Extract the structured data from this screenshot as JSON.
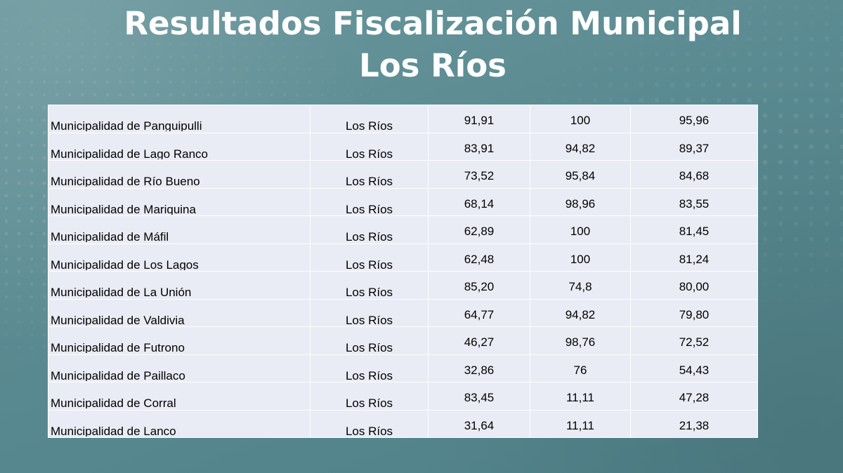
{
  "slide": {
    "title_line1": "Resultados Fiscalización Municipal",
    "title_line2": "Los Ríos"
  },
  "table": {
    "rows": [
      {
        "municipality": "Municipalidad de Panguipulli",
        "region": "Los Ríos",
        "value1": "91,91",
        "value2": "100",
        "value3": "95,96"
      },
      {
        "municipality": "Municipalidad de Lago Ranco",
        "region": "Los Ríos",
        "value1": "83,91",
        "value2": "94,82",
        "value3": "89,37"
      },
      {
        "municipality": "Municipalidad de Río Bueno",
        "region": "Los Ríos",
        "value1": "73,52",
        "value2": "95,84",
        "value3": "84,68"
      },
      {
        "municipality": "Municipalidad de Mariquina",
        "region": "Los Ríos",
        "value1": "68,14",
        "value2": "98,96",
        "value3": "83,55"
      },
      {
        "municipality": "Municipalidad de Máfil",
        "region": "Los Ríos",
        "value1": "62,89",
        "value2": "100",
        "value3": "81,45"
      },
      {
        "municipality": "Municipalidad de Los Lagos",
        "region": "Los Ríos",
        "value1": "62,48",
        "value2": "100",
        "value3": "81,24"
      },
      {
        "municipality": "Municipalidad de La Unión",
        "region": "Los Ríos",
        "value1": "85,20",
        "value2": "74,8",
        "value3": "80,00"
      },
      {
        "municipality": "Municipalidad de Valdivia",
        "region": "Los Ríos",
        "value1": "64,77",
        "value2": "94,82",
        "value3": "79,80"
      },
      {
        "municipality": "Municipalidad de Futrono",
        "region": "Los Ríos",
        "value1": "46,27",
        "value2": "98,76",
        "value3": "72,52"
      },
      {
        "municipality": "Municipalidad de Paillaco",
        "region": "Los Ríos",
        "value1": "32,86",
        "value2": "76",
        "value3": "54,43"
      },
      {
        "municipality": "Municipalidad de Corral",
        "region": "Los Ríos",
        "value1": "83,45",
        "value2": "11,11",
        "value3": "47,28"
      },
      {
        "municipality": "Municipalidad de Lanco",
        "region": "Los Ríos",
        "value1": "31,64",
        "value2": "11,11",
        "value3": "21,38"
      }
    ]
  }
}
